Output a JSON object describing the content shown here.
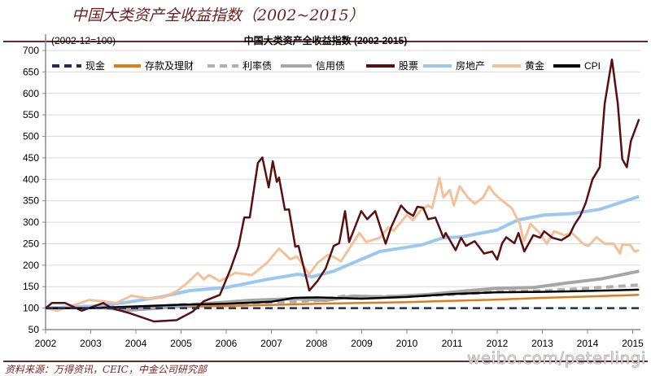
{
  "header": {
    "title": "中国大类资产全收益指数（2002~2015）",
    "source": "资料来源：万得资讯，CEIC，中金公司研究部",
    "watermark": "weibo.com/peterlingi"
  },
  "colors": {
    "rule": "#6b2a2a",
    "grid": "#d9d9d9"
  },
  "chart_data": {
    "type": "line",
    "title": "中国大类资产全收益指数 (2002-2015)",
    "subtitle": "(2002-12=100)",
    "ylim": [
      50,
      700
    ],
    "yticks": [
      50,
      100,
      150,
      200,
      250,
      300,
      350,
      400,
      450,
      500,
      550,
      600,
      650,
      700
    ],
    "xlim": [
      2002,
      2015.2
    ],
    "xticks": [
      "2002",
      "2003",
      "2004",
      "2005",
      "2006",
      "2007",
      "2008",
      "2009",
      "2010",
      "2011",
      "2012",
      "2013",
      "2014",
      "2015"
    ],
    "grid": true,
    "legend": "top",
    "series": [
      {
        "name": "现金",
        "color": "#1f2d5c",
        "dash": true,
        "x": [
          2002,
          2015.14
        ],
        "y": [
          100,
          100
        ]
      },
      {
        "name": "存款及理财",
        "color": "#e07b1a",
        "dash": false,
        "x": [
          2002,
          2004,
          2006,
          2008,
          2010,
          2012,
          2013,
          2014,
          2015.14
        ],
        "y": [
          100,
          102,
          105,
          110,
          114,
          120,
          124,
          127,
          131
        ]
      },
      {
        "name": "利率债",
        "color": "#b0b0b0",
        "dash": true,
        "x": [
          2002,
          2003,
          2004,
          2005,
          2006,
          2007,
          2008,
          2008.6,
          2009,
          2010,
          2011,
          2012,
          2013,
          2014,
          2015.14
        ],
        "y": [
          100,
          104,
          100,
          108,
          112,
          112,
          118,
          128,
          126,
          128,
          132,
          138,
          140,
          146,
          154
        ]
      },
      {
        "name": "信用债",
        "color": "#a6a6a6",
        "dash": false,
        "x": [
          2002,
          2003,
          2003.8,
          2004.5,
          2005.5,
          2006.5,
          2007.5,
          2008.2,
          2008.8,
          2009.5,
          2010.5,
          2011.3,
          2012,
          2012.8,
          2013.5,
          2014.3,
          2015.14
        ],
        "y": [
          100,
          104,
          95,
          100,
          110,
          118,
          122,
          118,
          128,
          126,
          132,
          140,
          146,
          148,
          158,
          168,
          186
        ]
      },
      {
        "name": "股票",
        "color": "#5a0f0f",
        "dash": false,
        "x": [
          2002,
          2002.14,
          2002.43,
          2002.8,
          2003.28,
          2003.46,
          2003.87,
          2004.4,
          2004.9,
          2005.26,
          2005.5,
          2005.86,
          2006.1,
          2006.27,
          2006.4,
          2006.52,
          2006.7,
          2006.8,
          2006.94,
          2007.03,
          2007.12,
          2007.17,
          2007.3,
          2007.39,
          2007.53,
          2007.6,
          2007.84,
          2008.02,
          2008.2,
          2008.38,
          2008.5,
          2008.63,
          2008.72,
          2008.99,
          2009.12,
          2009.3,
          2009.53,
          2009.65,
          2009.87,
          2010.0,
          2010.14,
          2010.23,
          2010.36,
          2010.47,
          2010.63,
          2010.81,
          2010.86,
          2011.08,
          2011.2,
          2011.31,
          2011.5,
          2011.71,
          2011.89,
          2012.0,
          2012.11,
          2012.2,
          2012.38,
          2012.47,
          2012.6,
          2012.8,
          2012.95,
          2013.04,
          2013.22,
          2013.42,
          2013.6,
          2013.71,
          2013.84,
          2013.96,
          2014.11,
          2014.27,
          2014.38,
          2014.54,
          2014.67,
          2014.77,
          2014.87,
          2014.96,
          2015.14
        ],
        "y": [
          100,
          112,
          112,
          94,
          112,
          100,
          88,
          69,
          72,
          92,
          116,
          131,
          192,
          243,
          311,
          311,
          438,
          451,
          381,
          442,
          394,
          404,
          329,
          330,
          243,
          245,
          141,
          163,
          192,
          245,
          251,
          326,
          254,
          326,
          307,
          326,
          250,
          288,
          339,
          324,
          315,
          336,
          334,
          307,
          311,
          264,
          275,
          235,
          264,
          245,
          256,
          227,
          232,
          213,
          251,
          265,
          251,
          275,
          232,
          270,
          264,
          279,
          264,
          258,
          270,
          294,
          315,
          345,
          400,
          428,
          576,
          679,
          576,
          447,
          428,
          489,
          540
        ]
      },
      {
        "name": "房地产",
        "color": "#9cc8ef",
        "dash": false,
        "x": [
          2002,
          2003,
          2003.7,
          2004.5,
          2005.2,
          2006,
          2006.9,
          2007.6,
          2007.9,
          2008.38,
          2008.8,
          2009.4,
          2010.32,
          2010.8,
          2011.22,
          2012.0,
          2012.45,
          2013.04,
          2013.66,
          2014.27,
          2015.14
        ],
        "y": [
          100,
          104,
          112,
          125,
          141,
          148,
          167,
          179,
          173,
          186,
          205,
          232,
          247,
          264,
          266,
          282,
          305,
          317,
          320,
          330,
          360
        ]
      },
      {
        "name": "黄金",
        "color": "#f3c199",
        "dash": false,
        "x": [
          2002,
          2002.25,
          2002.6,
          2002.97,
          2003.28,
          2003.57,
          2003.9,
          2004.29,
          2004.6,
          2004.9,
          2005.13,
          2005.37,
          2005.5,
          2005.62,
          2005.86,
          2006.2,
          2006.57,
          2006.9,
          2007.17,
          2007.42,
          2007.57,
          2007.84,
          2008.02,
          2008.25,
          2008.4,
          2008.54,
          2008.95,
          2009.1,
          2009.4,
          2009.59,
          2009.71,
          2010.0,
          2010.14,
          2010.29,
          2010.47,
          2010.56,
          2010.72,
          2010.81,
          2010.95,
          2011.04,
          2011.17,
          2011.35,
          2011.5,
          2011.69,
          2011.82,
          2011.93,
          2012.07,
          2012.32,
          2012.5,
          2012.59,
          2012.74,
          2012.94,
          2013.1,
          2013.26,
          2013.48,
          2013.66,
          2013.9,
          2014.02,
          2014.2,
          2014.38,
          2014.58,
          2014.72,
          2014.77,
          2014.95,
          2015.04,
          2015.14
        ],
        "y": [
          100,
          94,
          106,
          119,
          116,
          112,
          129,
          122,
          125,
          139,
          158,
          182,
          167,
          177,
          163,
          182,
          177,
          205,
          239,
          214,
          220,
          179,
          205,
          224,
          218,
          209,
          275,
          254,
          264,
          288,
          280,
          317,
          305,
          326,
          339,
          333,
          403,
          358,
          375,
          339,
          384,
          358,
          343,
          358,
          384,
          367,
          354,
          333,
          296,
          256,
          296,
          275,
          250,
          279,
          270,
          275,
          250,
          245,
          265,
          250,
          250,
          227,
          248,
          247,
          232,
          235
        ]
      },
      {
        "name": "CPI",
        "color": "#000000",
        "dash": false,
        "x": [
          2002,
          2003,
          2004,
          2005,
          2006,
          2007,
          2007.5,
          2008,
          2009,
          2010,
          2011,
          2012,
          2013,
          2014,
          2015.14
        ],
        "y": [
          100,
          100,
          104,
          108,
          110,
          115,
          124,
          125,
          122,
          126,
          133,
          137,
          138,
          140,
          143
        ]
      }
    ]
  }
}
